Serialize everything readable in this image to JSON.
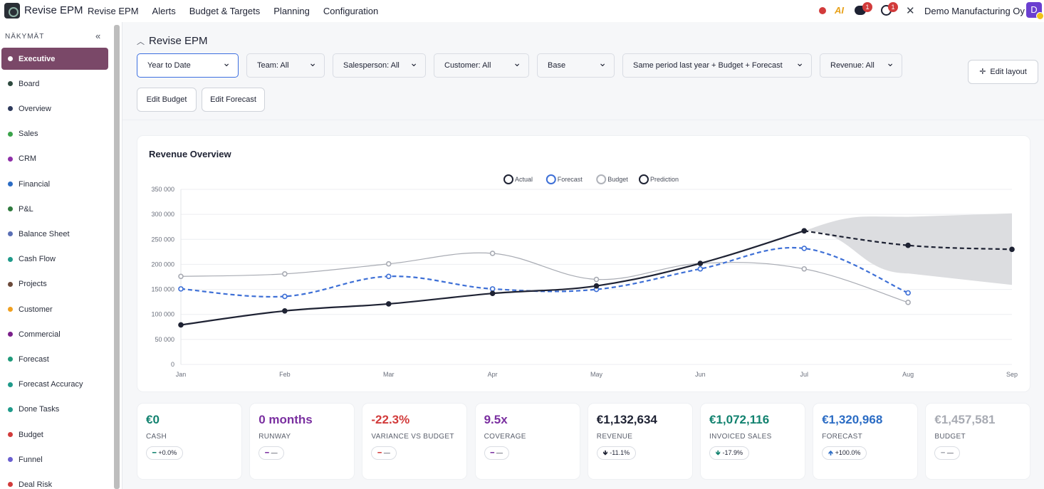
{
  "app": {
    "title": "Revise EPM",
    "company": "Demo Manufacturing Oy",
    "avatar_letter": "D",
    "ai_label": "AI"
  },
  "topnav": [
    "Revise EPM",
    "Alerts",
    "Budget & Targets",
    "Planning",
    "Configuration"
  ],
  "badges": {
    "chat": "1",
    "timer": "1"
  },
  "sidebar": {
    "heading": "NÄKYMÄT",
    "collapse_glyph": "«",
    "items": [
      {
        "label": "Executive",
        "color": "#ffffff"
      },
      {
        "label": "Board",
        "color": "#2e4a3f"
      },
      {
        "label": "Overview",
        "color": "#2e3a5c"
      },
      {
        "label": "Sales",
        "color": "#3aa34a"
      },
      {
        "label": "CRM",
        "color": "#8e2fa8"
      },
      {
        "label": "Financial",
        "color": "#2b6cc4"
      },
      {
        "label": "P&L",
        "color": "#2f7a3e"
      },
      {
        "label": "Balance Sheet",
        "color": "#5a6fb5"
      },
      {
        "label": "Cash Flow",
        "color": "#1f9a8a"
      },
      {
        "label": "Projects",
        "color": "#6b4a3a"
      },
      {
        "label": "Customer",
        "color": "#f0a020"
      },
      {
        "label": "Commercial",
        "color": "#7a1f8a"
      },
      {
        "label": "Forecast",
        "color": "#1f9a7a"
      },
      {
        "label": "Forecast Accuracy",
        "color": "#1f9a8a"
      },
      {
        "label": "Done Tasks",
        "color": "#1f9a8a"
      },
      {
        "label": "Budget",
        "color": "#d23b3b"
      },
      {
        "label": "Funnel",
        "color": "#6a5fd0"
      },
      {
        "label": "Deal Risk",
        "color": "#d23b3b"
      }
    ]
  },
  "main": {
    "title": "Revise EPM",
    "filters": [
      "Year to Date",
      "Team: All",
      "Salesperson: All",
      "Customer: All",
      "Base",
      "Same period last year + Budget + Forecast",
      "Revenue: All"
    ],
    "edit_layout": "Edit layout",
    "edit_budget": "Edit Budget",
    "edit_forecast": "Edit Forecast"
  },
  "chart_data": {
    "type": "line",
    "title": "Revenue Overview",
    "categories": [
      "Jan",
      "Feb",
      "Mar",
      "Apr",
      "May",
      "Jun",
      "Jul",
      "Aug",
      "Sep"
    ],
    "ylim": [
      0,
      350000
    ],
    "yticks": [
      "0",
      "50 000",
      "100 000",
      "150 000",
      "200 000",
      "250 000",
      "300 000",
      "350 000"
    ],
    "legend_position": "top-center",
    "series": [
      {
        "name": "Actual",
        "color": "#1e2233",
        "style": "solid",
        "values": [
          79000,
          107000,
          121000,
          142000,
          157000,
          202000,
          267000,
          null,
          null
        ]
      },
      {
        "name": "Forecast",
        "color": "#3d6fd6",
        "style": "dashed",
        "values": [
          151000,
          136000,
          176000,
          151000,
          150000,
          191000,
          232000,
          143000,
          null
        ]
      },
      {
        "name": "Budget",
        "color": "#a8abb3",
        "style": "solid",
        "values": [
          176000,
          181000,
          201000,
          222000,
          170000,
          202000,
          191000,
          124000,
          null
        ]
      },
      {
        "name": "Prediction",
        "color": "#1e2233",
        "style": "dashed",
        "values": [
          null,
          null,
          null,
          null,
          null,
          null,
          267000,
          238000,
          230000
        ]
      }
    ],
    "prediction_band": {
      "lower": [
        null,
        null,
        null,
        null,
        null,
        null,
        267000,
        182000,
        159000
      ],
      "upper": [
        null,
        null,
        null,
        null,
        null,
        null,
        267000,
        295000,
        302000
      ]
    }
  },
  "kpis": [
    {
      "value": "€0",
      "label": "CASH",
      "change": "+0.0%",
      "marker": "━",
      "color": "#12826f"
    },
    {
      "value": "0 months",
      "label": "RUNWAY",
      "change": "—",
      "marker": "━",
      "color": "#7a2fa0"
    },
    {
      "value": "-22.3%",
      "label": "VARIANCE VS BUDGET",
      "change": "—",
      "marker": "━",
      "color": "#d23b3b"
    },
    {
      "value": "9.5x",
      "label": "COVERAGE",
      "change": "—",
      "marker": "━",
      "color": "#7a2fa0"
    },
    {
      "value": "€1,132,634",
      "label": "REVENUE",
      "change": "-11.1%",
      "marker": "🡻",
      "color": "#1e2233"
    },
    {
      "value": "€1,072,116",
      "label": "INVOICED SALES",
      "change": "-17.9%",
      "marker": "🡻",
      "color": "#12826f"
    },
    {
      "value": "€1,320,968",
      "label": "FORECAST",
      "change": "+100.0%",
      "marker": "🡹",
      "color": "#2b6cc4"
    },
    {
      "value": "€1,457,581",
      "label": "BUDGET",
      "change": "—",
      "marker": "━",
      "color": "#a8abb3"
    }
  ]
}
